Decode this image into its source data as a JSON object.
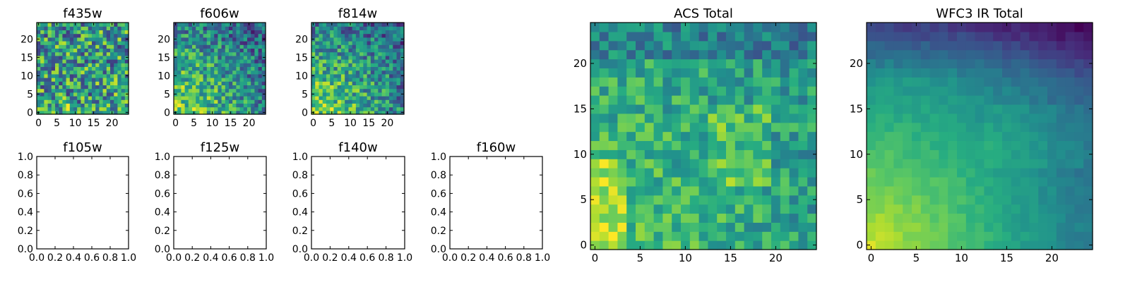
{
  "chart_data": [
    {
      "id": "f435w",
      "type": "heatmap",
      "title": "f435w",
      "xlabel": "",
      "ylabel": "",
      "xlim": [
        -0.5,
        24.5
      ],
      "ylim": [
        -0.5,
        24.5
      ],
      "xticks": [
        0,
        5,
        10,
        15,
        20
      ],
      "yticks": [
        0,
        5,
        10,
        15,
        20
      ],
      "grid": false,
      "colormap": "viridis",
      "seed": 11,
      "pattern": "noisy"
    },
    {
      "id": "f606w",
      "type": "heatmap",
      "title": "f606w",
      "xlabel": "",
      "ylabel": "",
      "xlim": [
        -0.5,
        24.5
      ],
      "ylim": [
        -0.5,
        24.5
      ],
      "xticks": [
        0,
        5,
        10,
        15,
        20
      ],
      "yticks": [
        0,
        5,
        10,
        15,
        20
      ],
      "grid": false,
      "colormap": "viridis",
      "seed": 23,
      "pattern": "corner"
    },
    {
      "id": "f814w",
      "type": "heatmap",
      "title": "f814w",
      "xlabel": "",
      "ylabel": "",
      "xlim": [
        -0.5,
        24.5
      ],
      "ylim": [
        -0.5,
        24.5
      ],
      "xticks": [
        0,
        5,
        10,
        15,
        20
      ],
      "yticks": [
        0,
        5,
        10,
        15,
        20
      ],
      "grid": false,
      "colormap": "viridis",
      "seed": 37,
      "pattern": "corner"
    },
    {
      "id": "f105w",
      "type": "empty",
      "title": "f105w",
      "xlim": [
        0,
        1
      ],
      "ylim": [
        0,
        1
      ],
      "xticks": [
        "0.0",
        "0.2",
        "0.4",
        "0.6",
        "0.8",
        "1.0"
      ],
      "yticks": [
        "0.0",
        "0.2",
        "0.4",
        "0.6",
        "0.8",
        "1.0"
      ],
      "grid": false
    },
    {
      "id": "f125w",
      "type": "empty",
      "title": "f125w",
      "xlim": [
        0,
        1
      ],
      "ylim": [
        0,
        1
      ],
      "xticks": [
        "0.0",
        "0.2",
        "0.4",
        "0.6",
        "0.8",
        "1.0"
      ],
      "yticks": [
        "0.0",
        "0.2",
        "0.4",
        "0.6",
        "0.8",
        "1.0"
      ],
      "grid": false
    },
    {
      "id": "f140w",
      "type": "empty",
      "title": "f140w",
      "xlim": [
        0,
        1
      ],
      "ylim": [
        0,
        1
      ],
      "xticks": [
        "0.0",
        "0.2",
        "0.4",
        "0.6",
        "0.8",
        "1.0"
      ],
      "yticks": [
        "0.0",
        "0.2",
        "0.4",
        "0.6",
        "0.8",
        "1.0"
      ],
      "grid": false
    },
    {
      "id": "f160w",
      "type": "empty",
      "title": "f160w",
      "xlim": [
        0,
        1
      ],
      "ylim": [
        0,
        1
      ],
      "xticks": [
        "0.0",
        "0.2",
        "0.4",
        "0.6",
        "0.8",
        "1.0"
      ],
      "yticks": [
        "0.0",
        "0.2",
        "0.4",
        "0.6",
        "0.8",
        "1.0"
      ],
      "grid": false
    },
    {
      "id": "acs-total",
      "type": "heatmap",
      "title": "ACS Total",
      "xlabel": "",
      "ylabel": "",
      "xlim": [
        -0.5,
        24.5
      ],
      "ylim": [
        -0.5,
        24.5
      ],
      "xticks": [
        0,
        5,
        10,
        15,
        20
      ],
      "yticks": [
        0,
        5,
        10,
        15,
        20
      ],
      "grid": false,
      "colormap": "viridis",
      "seed": 51,
      "pattern": "acs"
    },
    {
      "id": "wfc3-ir-total",
      "type": "heatmap",
      "title": "WFC3 IR Total",
      "xlabel": "",
      "ylabel": "",
      "xlim": [
        -0.5,
        24.5
      ],
      "ylim": [
        -0.5,
        24.5
      ],
      "xticks": [
        0,
        5,
        10,
        15,
        20
      ],
      "yticks": [
        0,
        5,
        10,
        15,
        20
      ],
      "grid": false,
      "colormap": "viridis",
      "seed": 67,
      "pattern": "smooth"
    }
  ]
}
